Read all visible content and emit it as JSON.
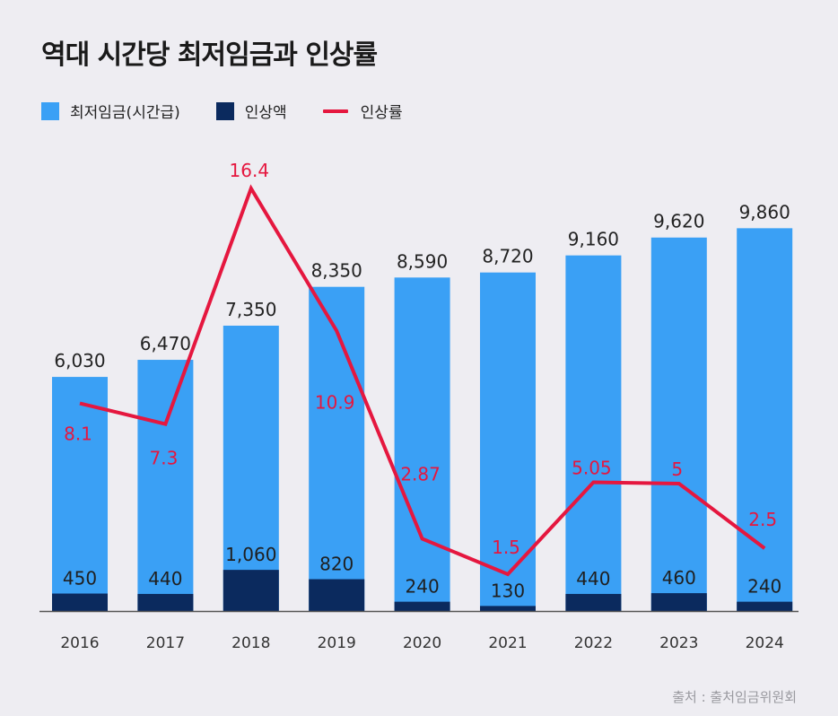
{
  "title": "역대 시간당 최저임금과 인상률",
  "source": "출처 : 출처임금위원회",
  "colors": {
    "wage": "#3aa0f5",
    "increase": "#0b2a5e",
    "rate": "#e5173f",
    "label_dark": "#222222",
    "label_light": "#1f1f1f"
  },
  "chart_data": {
    "type": "bar",
    "title": "역대 시간당 최저임금과 인상률",
    "categories": [
      "2016",
      "2017",
      "2018",
      "2019",
      "2020",
      "2021",
      "2022",
      "2023",
      "2024"
    ],
    "series": [
      {
        "name": "최저임금(시간급)",
        "type": "bar",
        "values": [
          6030,
          6470,
          7350,
          8350,
          8590,
          8720,
          9160,
          9620,
          9860
        ],
        "labels": [
          "6,030",
          "6,470",
          "7,350",
          "8,350",
          "8,590",
          "8,720",
          "9,160",
          "9,620",
          "9,860"
        ]
      },
      {
        "name": "인상액",
        "type": "bar",
        "values": [
          450,
          440,
          1060,
          820,
          240,
          130,
          440,
          460,
          240
        ],
        "labels": [
          "450",
          "440",
          "1,060",
          "820",
          "240",
          "130",
          "440",
          "460",
          "240"
        ]
      },
      {
        "name": "인상률",
        "type": "line",
        "values": [
          8.1,
          7.3,
          16.4,
          10.9,
          2.87,
          1.5,
          5.05,
          5,
          2.5
        ],
        "labels": [
          "8.1",
          "7.3",
          "16.4",
          "10.9",
          "2.87",
          "1.5",
          "5.05",
          "5",
          "2.5"
        ]
      }
    ],
    "ylim": [
      0,
      10500
    ],
    "rate_ylim": [
      0,
      18
    ],
    "legend": "top-left",
    "grid": false
  }
}
